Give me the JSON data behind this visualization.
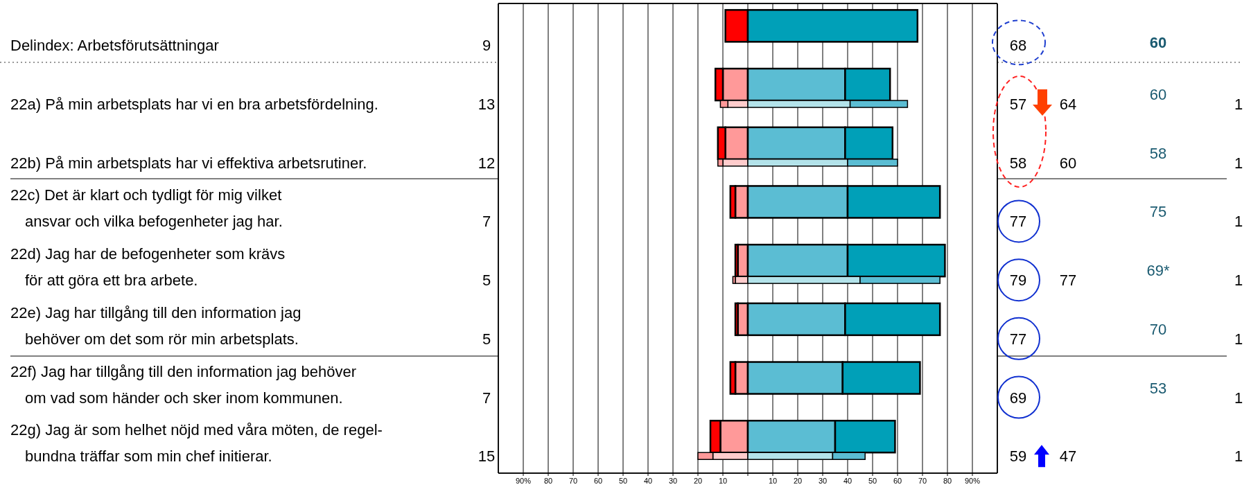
{
  "chart_data": [
    {
      "type": "bar",
      "orientation": "horizontal",
      "stacked": true,
      "categories": [
        "Delindex: Arbetsförutsättningar",
        "22a) På min arbetsplats har vi en bra arbetsfördelning.",
        "22b) På min arbetsplats har vi effektiva arbetsrutiner.",
        "22c) Det är klart och tydligt för mig vilket\nansvar och vilka befogenheter jag har.",
        "22d) Jag har de befogenheter som krävs\nför att göra ett bra arbete.",
        "22e) Jag har tillgång till den information jag\nbehöver om det som rör min arbetsplats.",
        "22f) Jag har tillgång till den information jag behöver\nom vad som händer och sker inom kommunen.",
        "22g) Jag är som helhet nöjd med våra möten, de regel-\nbundna träffar som min chef initierar."
      ],
      "series": [
        {
          "color": "#ff9999",
          "values": [
            null,
            -10,
            -9,
            -5,
            -4,
            -4,
            -5,
            -11
          ]
        },
        {
          "color": "#ff0000",
          "values": [
            -9,
            -3,
            -3,
            -2,
            -1,
            -1,
            -2,
            -4
          ]
        },
        {
          "color": "#5bbdd3",
          "values": [
            null,
            39,
            39,
            40,
            40,
            39,
            38,
            35
          ]
        },
        {
          "color": "#00a0b8",
          "values": [
            68,
            18,
            19,
            37,
            39,
            38,
            31,
            24
          ]
        }
      ],
      "annotations": [
        "9",
        "13",
        "12",
        "7",
        "5",
        "5",
        "7",
        "15",
        "68",
        "57",
        "58",
        "77",
        "79",
        "77",
        "69",
        "59",
        "64",
        "60",
        "77",
        "47",
        "60",
        "60",
        "58",
        "75",
        "69*",
        "70",
        "53",
        "1",
        "1",
        "1",
        "1",
        "1",
        "1",
        "1"
      ],
      "xlim": [
        -100,
        100
      ],
      "xticks": [
        {
          "value": -90,
          "label": "90%"
        },
        {
          "value": -80,
          "label": "80"
        },
        {
          "value": -70,
          "label": "70"
        },
        {
          "value": -60,
          "label": "60"
        },
        {
          "value": -50,
          "label": "50"
        },
        {
          "value": -40,
          "label": "40"
        },
        {
          "value": -30,
          "label": "30"
        },
        {
          "value": -20,
          "label": "20"
        },
        {
          "value": -10,
          "label": "10"
        },
        {
          "value": 0,
          "label": null
        },
        {
          "value": 10,
          "label": "10"
        },
        {
          "value": 20,
          "label": "20"
        },
        {
          "value": 30,
          "label": "30"
        },
        {
          "value": 40,
          "label": "40"
        },
        {
          "value": 50,
          "label": "50"
        },
        {
          "value": 60,
          "label": "60"
        },
        {
          "value": 70,
          "label": "70"
        },
        {
          "value": 80,
          "label": "80"
        },
        {
          "value": 90,
          "label": "90%"
        }
      ],
      "grid": "x"
    },
    {
      "type": "bar",
      "orientation": "horizontal",
      "stacked": true,
      "categories": [
        null,
        null,
        null,
        null,
        null,
        null,
        null,
        null
      ],
      "series": [
        {
          "color": "#ffcccc",
          "values": [
            null,
            -8,
            -10,
            null,
            -5,
            null,
            null,
            -14
          ]
        },
        {
          "color": "#ff9999",
          "values": [
            null,
            -3,
            -2,
            null,
            -1,
            null,
            null,
            -6
          ]
        },
        {
          "color": "#b3e3ea",
          "values": [
            null,
            41,
            40,
            null,
            45,
            null,
            null,
            34
          ]
        },
        {
          "color": "#5bbdd3",
          "values": [
            null,
            23,
            20,
            null,
            32,
            null,
            null,
            13
          ]
        }
      ],
      "xlim": [
        -100,
        100
      ]
    }
  ]
}
